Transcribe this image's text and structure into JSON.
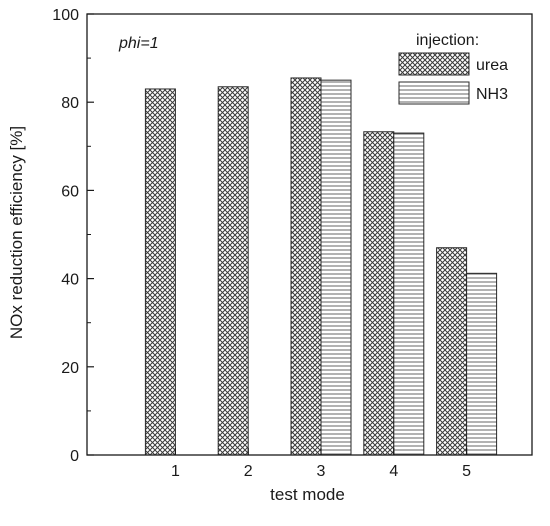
{
  "chart_data": {
    "type": "bar",
    "categories": [
      "1",
      "2",
      "3",
      "4",
      "5"
    ],
    "series": [
      {
        "name": "urea",
        "values": [
          83,
          83.5,
          85.5,
          73.3,
          47
        ],
        "pattern": "crosshatch"
      },
      {
        "name": "NH3",
        "values": [
          null,
          null,
          85,
          73,
          41.2
        ],
        "pattern": "horizontal-lines"
      }
    ],
    "xlabel": "test mode",
    "ylabel": "NOx reduction efficiency [%]",
    "ylim": [
      0,
      100
    ],
    "yticks": [
      0,
      20,
      40,
      60,
      80,
      100
    ],
    "annotation": "phi=1",
    "legend_title": "injection:",
    "legend_position": "top-right",
    "grid": false
  }
}
